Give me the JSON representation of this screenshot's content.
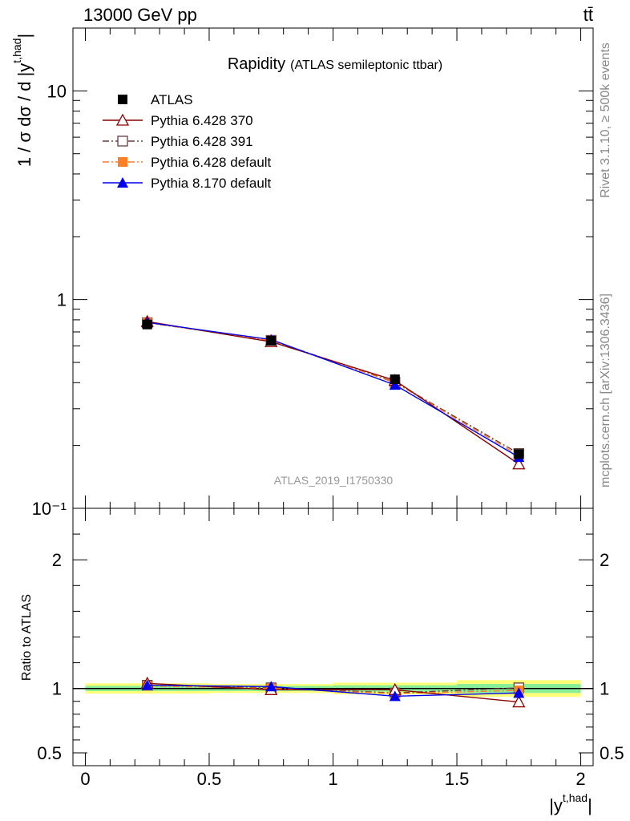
{
  "header": {
    "left": "13000 GeV pp",
    "right": "tt̄"
  },
  "side_text": {
    "rivet": "Rivet 3.1.10, ≥ 500k events",
    "mcplots": "mcplots.cern.ch [arXiv:1306.3436]"
  },
  "watermark": "ATLAS_2019_I1750330",
  "chart_data": [
    {
      "type": "line",
      "title": "Rapidity",
      "subtitle": "(ATLAS semileptonic ttbar)",
      "ylabel": "1 / σ dσ / d |y^{t,had}|",
      "yscale": "log",
      "ylim": [
        0.1,
        20
      ],
      "xlim": [
        -0.05,
        2.05
      ],
      "ytick_labels": [
        "10",
        "1",
        "10⁻¹"
      ],
      "legend_position": "top-left",
      "x": [
        0.25,
        0.75,
        1.25,
        1.75
      ],
      "series": [
        {
          "name": "ATLAS",
          "color": "#000000",
          "marker": "square-filled",
          "line": "none",
          "values": [
            0.76,
            0.635,
            0.415,
            0.182
          ],
          "errors": [
            0.02,
            0.015,
            0.012,
            0.006
          ]
        },
        {
          "name": "Pythia 6.428 370",
          "color": "#8b0000",
          "marker": "triangle-open",
          "line": "solid",
          "values": [
            0.785,
            0.628,
            0.41,
            0.163
          ]
        },
        {
          "name": "Pythia 6.428 391",
          "color": "#6b3a3a",
          "marker": "square-open",
          "line": "dashdot",
          "values": [
            0.775,
            0.638,
            0.402,
            0.183
          ]
        },
        {
          "name": "Pythia 6.428 default",
          "color": "#ff7f27",
          "marker": "square-filled",
          "line": "dashdot",
          "values": [
            0.775,
            0.636,
            0.4,
            0.179
          ]
        },
        {
          "name": "Pythia 8.170 default",
          "color": "#0000ee",
          "marker": "triangle-filled",
          "line": "solid",
          "values": [
            0.777,
            0.643,
            0.39,
            0.176
          ]
        }
      ]
    },
    {
      "type": "line",
      "ylabel": "Ratio to ATLAS",
      "xlabel": "|y^{t,had}|",
      "ylim": [
        0.4,
        2.4
      ],
      "yticks": [
        0.5,
        1,
        2
      ],
      "ytick_labels": [
        "0.5",
        "1",
        "2"
      ],
      "xticks": [
        0,
        0.5,
        1,
        1.5,
        2
      ],
      "xtick_labels": [
        "0",
        "0.5",
        "1",
        "1.5",
        "2"
      ],
      "x": [
        0.25,
        0.75,
        1.25,
        1.75
      ],
      "bands": {
        "bins": [
          [
            0,
            0.5
          ],
          [
            0.5,
            1.0
          ],
          [
            1.0,
            1.5
          ],
          [
            1.5,
            2.0
          ]
        ],
        "yellow": [
          0.04,
          0.035,
          0.045,
          0.065
        ],
        "green": [
          0.02,
          0.02,
          0.025,
          0.035
        ]
      },
      "series": [
        {
          "name": "Pythia 6.428 370",
          "values": [
            1.04,
            0.99,
            0.99,
            0.895
          ]
        },
        {
          "name": "Pythia 6.428 391",
          "values": [
            1.025,
            1.005,
            0.965,
            1.005
          ]
        },
        {
          "name": "Pythia 6.428 default",
          "values": [
            1.02,
            1.0,
            0.96,
            0.985
          ]
        },
        {
          "name": "Pythia 8.170 default",
          "values": [
            1.025,
            1.015,
            0.94,
            0.965
          ],
          "errors": [
            0.02,
            0.025,
            0.035,
            0.04
          ]
        }
      ]
    }
  ]
}
